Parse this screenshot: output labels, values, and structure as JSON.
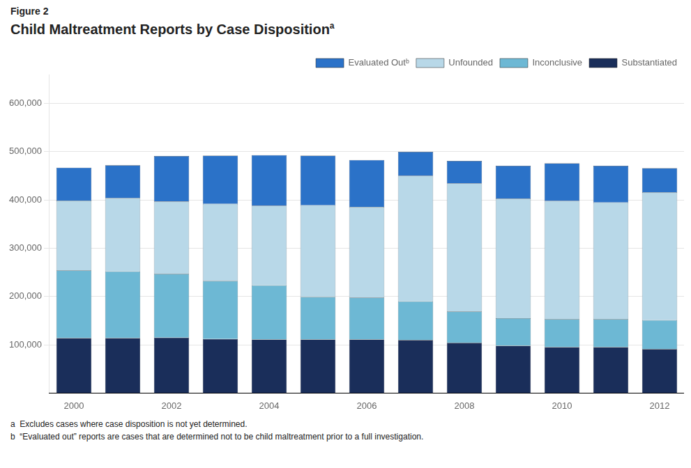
{
  "chart_data": {
    "type": "bar",
    "label": "Figure 2",
    "title": "Child Maltreatment Reports by Case Disposition",
    "title_superscript": "a",
    "footnotes": [
      "a  Excludes cases where case disposition is not yet determined.",
      "b  “Evaluated out” reports are cases that are determined not to be child maltreatment prior to a full investigation."
    ],
    "categories": [
      "2000",
      null,
      "2002",
      null,
      "2004",
      null,
      "2006",
      null,
      "2008",
      null,
      "2010",
      null,
      "2012"
    ],
    "series": [
      {
        "name": "Substantiated",
        "color": "#1a2e5a",
        "values": [
          114000,
          114000,
          115000,
          112000,
          111000,
          111000,
          111000,
          110000,
          104000,
          98000,
          95000,
          95000,
          91000
        ]
      },
      {
        "name": "Inconclusive",
        "color": "#6db8d4",
        "values": [
          140000,
          138000,
          132000,
          120000,
          112000,
          88000,
          87000,
          80000,
          65000,
          57000,
          58000,
          58000,
          60000
        ]
      },
      {
        "name": "Unfounded",
        "color": "#b8d8e8",
        "values": [
          145000,
          152000,
          150000,
          160000,
          165000,
          190000,
          188000,
          260000,
          265000,
          248000,
          245000,
          242000,
          265000
        ]
      },
      {
        "name": "Evaluated Outᵇ",
        "color": "#2b72c8",
        "values": [
          68000,
          68000,
          94000,
          100000,
          105000,
          103000,
          97000,
          50000,
          47000,
          68000,
          78000,
          76000,
          50000
        ]
      }
    ],
    "stacked": true,
    "ylim": [
      0,
      660000
    ],
    "yticks": [
      {
        "value": 100000,
        "label": "100,000"
      },
      {
        "value": 200000,
        "label": "200,000"
      },
      {
        "value": 300000,
        "label": "300,000"
      },
      {
        "value": 400000,
        "label": "400,000"
      },
      {
        "value": 500000,
        "label": "500,000"
      },
      {
        "value": 600000,
        "label": "600,000"
      }
    ],
    "grid": true,
    "legend": "upper right"
  }
}
